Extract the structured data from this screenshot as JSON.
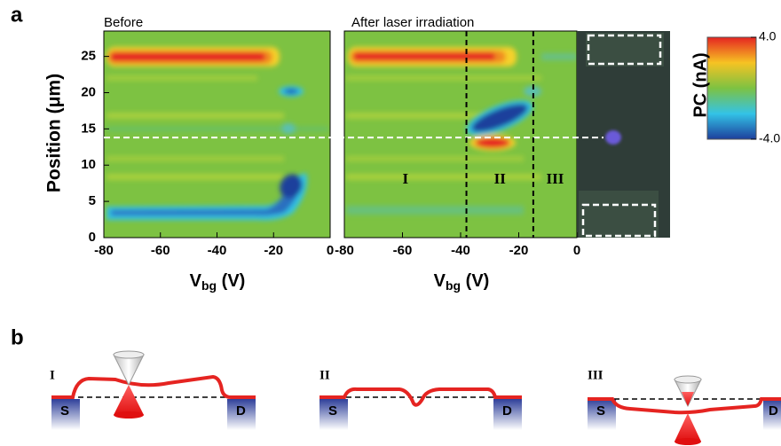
{
  "panel_a": {
    "label": "a",
    "y_label": "Position (μm)",
    "ylim": [
      0,
      28.5
    ],
    "yticks": [
      0,
      5,
      10,
      15,
      20,
      25
    ],
    "x_label": {
      "main": "V",
      "sub": "bg",
      "unit": " (V)"
    },
    "xlim": [
      -80,
      0
    ],
    "xticks": [
      -80,
      -60,
      -40,
      -20,
      0
    ],
    "plots": [
      {
        "title": "Before"
      },
      {
        "title": "After laser irradiation",
        "boundaries": [
          -38,
          -15
        ],
        "regions": [
          "I",
          "II",
          "III"
        ]
      }
    ],
    "cut_position": 13.8,
    "colorbar": {
      "label": "PC (nA)",
      "clim": [
        -4,
        4
      ],
      "ticks": [
        {
          "value": 4,
          "label": "4.0"
        },
        {
          "value": -4,
          "label": "-4.0"
        }
      ]
    }
  },
  "panel_b": {
    "label": "b",
    "diagrams": [
      {
        "label": "I",
        "source": "S",
        "drain": "D"
      },
      {
        "label": "II",
        "source": "S",
        "drain": "D"
      },
      {
        "label": "III",
        "source": "S",
        "drain": "D"
      }
    ]
  }
}
